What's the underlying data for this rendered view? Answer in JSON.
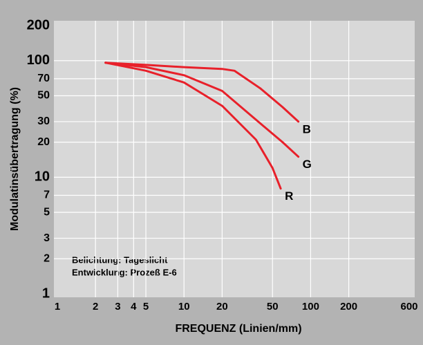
{
  "chart_data": {
    "type": "line",
    "xlabel": "FREQUENZ (Linien/mm)",
    "ylabel": "Modulatinsübertragung (%)",
    "annotations": [
      "Belichtung: Tageslicht",
      "Entwicklung: Prozeß E-6"
    ],
    "log_x": true,
    "log_y": true,
    "grid": true,
    "xlim": [
      1,
      600
    ],
    "ylim": [
      1,
      200
    ],
    "xticks": [
      1,
      2,
      3,
      4,
      5,
      10,
      20,
      50,
      100,
      200,
      600
    ],
    "yticks": [
      1,
      2,
      3,
      5,
      7,
      10,
      20,
      30,
      50,
      70,
      100,
      200
    ],
    "series": [
      {
        "name": "B",
        "color": "#e8202a",
        "x": [
          2.4,
          5,
          10,
          20,
          25,
          40,
          60,
          80
        ],
        "values": [
          96,
          92,
          88,
          85,
          82,
          58,
          40,
          30
        ]
      },
      {
        "name": "G",
        "color": "#e8202a",
        "x": [
          2.4,
          5,
          10,
          20,
          40,
          60,
          80
        ],
        "values": [
          96,
          88,
          75,
          55,
          29,
          20,
          15
        ]
      },
      {
        "name": "R",
        "color": "#e8202a",
        "x": [
          2.4,
          5,
          10,
          20,
          37,
          50,
          58
        ],
        "values": [
          96,
          82,
          65,
          41,
          21,
          12,
          8
        ]
      }
    ]
  }
}
